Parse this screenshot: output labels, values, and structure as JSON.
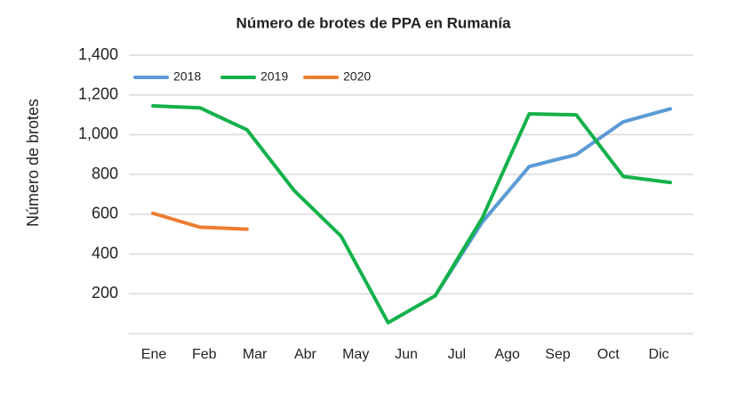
{
  "chart_data": {
    "type": "line",
    "title": "Número de brotes de PPA en Rumanía",
    "y_label": "Número de brotes",
    "categories": [
      "Ene",
      "Feb",
      "Mar",
      "Abr",
      "May",
      "Jun",
      "Jul",
      "Ago",
      "Sep",
      "Oct",
      null,
      "Dic"
    ],
    "series": [
      {
        "name": "2018",
        "color": "#5b9bd5",
        "values": [
          null,
          null,
          null,
          null,
          null,
          null,
          190,
          560,
          840,
          900,
          1065,
          1130
        ]
      },
      {
        "name": "2019",
        "color": "#14b14b",
        "values": [
          1145,
          1135,
          1025,
          720,
          490,
          55,
          190,
          580,
          1105,
          1100,
          790,
          760
        ]
      },
      {
        "name": "2020",
        "color": "#ed7d31",
        "values": [
          605,
          535,
          525,
          null,
          null,
          null,
          null,
          null,
          null,
          null,
          null,
          null
        ]
      }
    ],
    "ylim": [
      0,
      1400
    ],
    "yticks": [
      200,
      400,
      600,
      800,
      {
        "value": 1000,
        "label": "1,000"
      },
      {
        "value": 1200,
        "label": "1,200"
      },
      {
        "value": 1400,
        "label": "1,400"
      }
    ],
    "grid": true,
    "legend": "top-left"
  }
}
